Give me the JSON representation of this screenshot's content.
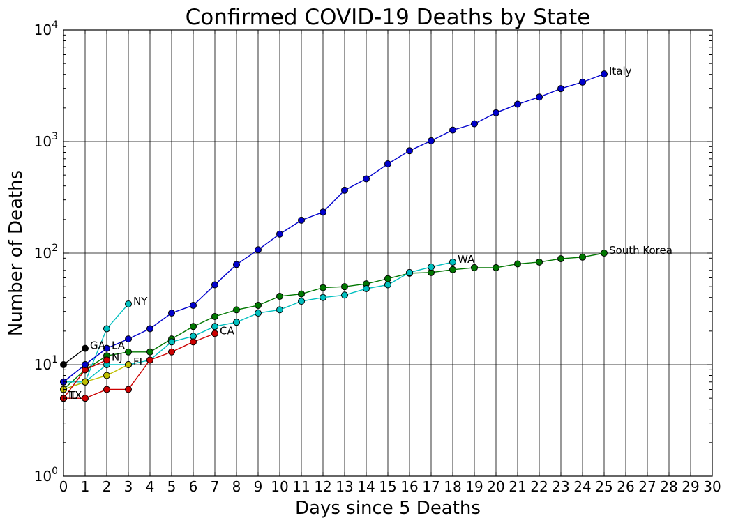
{
  "chart_data": {
    "type": "line",
    "title": "Confirmed COVID-19 Deaths by State",
    "xlabel": "Days since 5 Deaths",
    "ylabel": "Number of Deaths",
    "xlim": [
      0,
      30
    ],
    "ylim": [
      1,
      10000
    ],
    "yscale": "log",
    "grid": true,
    "x_ticks": [
      "0",
      "1",
      "2",
      "3",
      "4",
      "5",
      "6",
      "7",
      "8",
      "9",
      "10",
      "11",
      "12",
      "13",
      "14",
      "15",
      "16",
      "17",
      "18",
      "19",
      "20",
      "21",
      "22",
      "23",
      "24",
      "25",
      "26",
      "27",
      "28",
      "29",
      "30"
    ],
    "y_ticks": [
      {
        "base": "10",
        "exp": "0",
        "value": 1
      },
      {
        "base": "10",
        "exp": "1",
        "value": 10
      },
      {
        "base": "10",
        "exp": "2",
        "value": 100
      },
      {
        "base": "10",
        "exp": "3",
        "value": 1000
      },
      {
        "base": "10",
        "exp": "4",
        "value": 10000
      }
    ],
    "series": [
      {
        "name": "Italy",
        "color": "#0000cc",
        "values": [
          7,
          10,
          14,
          17,
          21,
          29,
          34,
          52,
          79,
          107,
          148,
          197,
          233,
          366,
          463,
          631,
          827,
          1016,
          1266,
          1441,
          1809,
          2158,
          2503,
          2978,
          3405,
          4032
        ]
      },
      {
        "name": "South Korea",
        "color": "#007700",
        "values": [
          6,
          9,
          12,
          13,
          13,
          17,
          22,
          27,
          31,
          34,
          41,
          43,
          49,
          50,
          53,
          59,
          66,
          67,
          71,
          74,
          74,
          80,
          83,
          89,
          92,
          100
        ]
      },
      {
        "name": "WA",
        "color": "#00bfbf",
        "values": [
          6,
          7,
          10,
          10,
          11,
          16,
          18,
          22,
          24,
          29,
          31,
          37,
          40,
          42,
          48,
          52,
          67,
          75,
          83
        ]
      },
      {
        "name": "CA",
        "color": "#cc0000",
        "values": [
          5,
          5,
          6,
          6,
          11,
          13,
          16,
          19
        ]
      },
      {
        "name": "NY",
        "color": "#00bfbf",
        "values": [
          7,
          7,
          21,
          35
        ]
      },
      {
        "name": "FL",
        "color": "#bfbf00",
        "values": [
          6,
          7,
          8,
          10
        ]
      },
      {
        "name": "NJ",
        "color": "#cc0000",
        "values": [
          5,
          9,
          11
        ]
      },
      {
        "name": "LA",
        "color": "#0000cc",
        "values": [
          7,
          10,
          14
        ]
      },
      {
        "name": "GA",
        "color": "#000000",
        "values": [
          10,
          14
        ]
      },
      {
        "name": "TX",
        "color": "#cc0000",
        "values": [
          5
        ]
      },
      {
        "name": "IL",
        "color": "#cc0000",
        "values": [
          5
        ]
      }
    ],
    "annotations": [
      {
        "text": "Italy",
        "series": "Italy"
      },
      {
        "text": "South Korea",
        "series": "South Korea"
      },
      {
        "text": "WA",
        "series": "WA"
      },
      {
        "text": "CA",
        "series": "CA"
      },
      {
        "text": "NY",
        "series": "NY"
      },
      {
        "text": "FL",
        "series": "FL"
      },
      {
        "text": "NJ",
        "series": "NJ"
      },
      {
        "text": "LA",
        "series": "LA"
      },
      {
        "text": "GA",
        "series": "GA"
      },
      {
        "text": "TX",
        "series": "TX"
      },
      {
        "text": "IL",
        "series": "IL"
      }
    ]
  }
}
